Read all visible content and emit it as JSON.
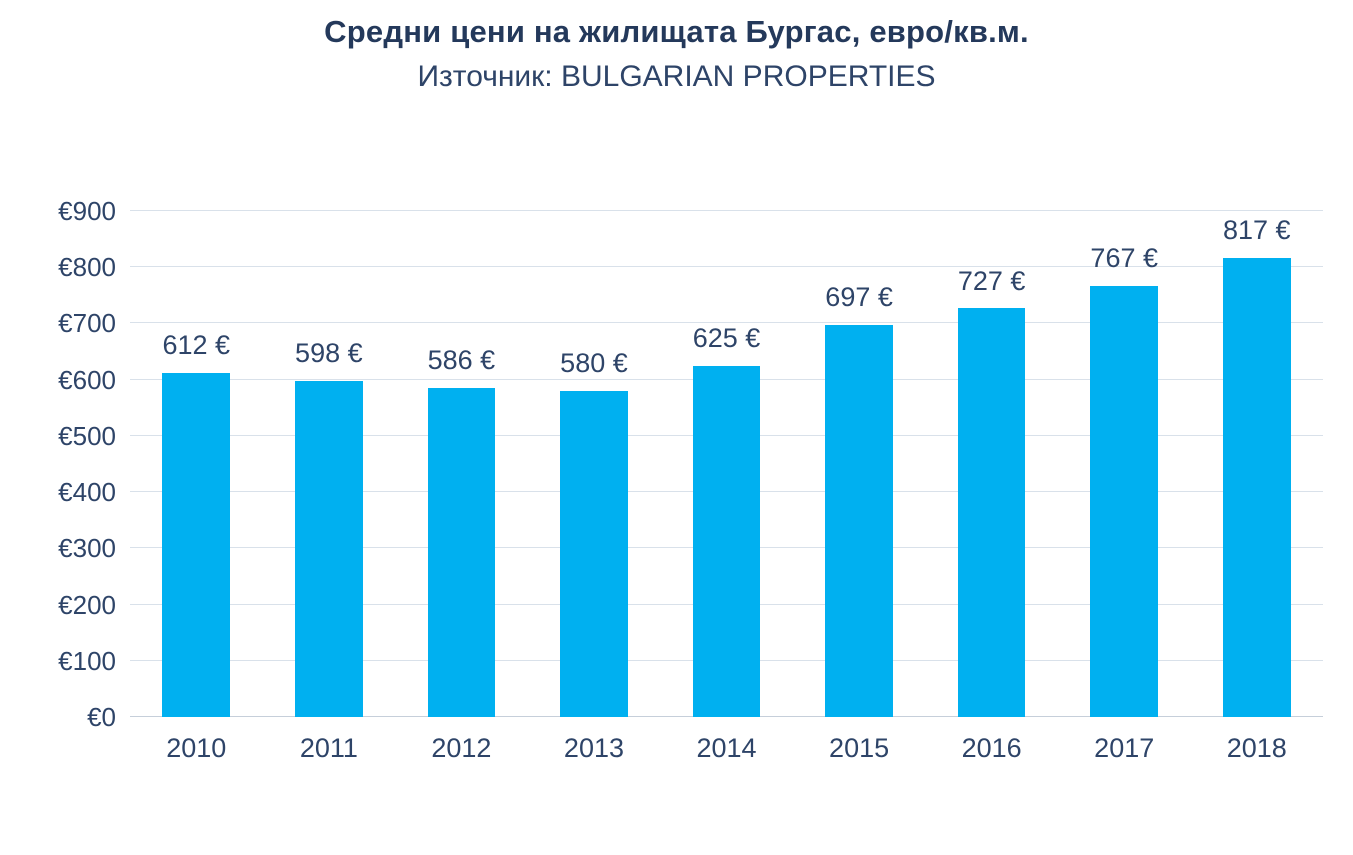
{
  "chart_data": {
    "type": "bar",
    "title": "Средни цени на жилищата Бургас, евро/кв.м.",
    "subtitle": "Източник: BULGARIAN PROPERTIES",
    "categories": [
      "2010",
      "2011",
      "2012",
      "2013",
      "2014",
      "2015",
      "2016",
      "2017",
      "2018"
    ],
    "values": [
      612,
      598,
      586,
      580,
      625,
      697,
      727,
      767,
      817
    ],
    "value_labels": [
      "612 €",
      "598 €",
      "586 €",
      "580 €",
      "625 €",
      "697 €",
      "727 €",
      "767 €",
      "817 €"
    ],
    "ylim": [
      0,
      900
    ],
    "ytick_step": 100,
    "ytick_values": [
      0,
      100,
      200,
      300,
      400,
      500,
      600,
      700,
      800,
      900
    ],
    "ytick_labels": [
      "€0",
      "€100",
      "€200",
      "€300",
      "€400",
      "€500",
      "€600",
      "€700",
      "€800",
      "€900"
    ],
    "grid": "horizontal",
    "legend_position": "none",
    "bar_color": "#00B0F0",
    "text_color": "#2E4468",
    "title_color": "#24395B",
    "gridline_color": "#D9E1EA",
    "background_color": "#FFFFFF"
  }
}
